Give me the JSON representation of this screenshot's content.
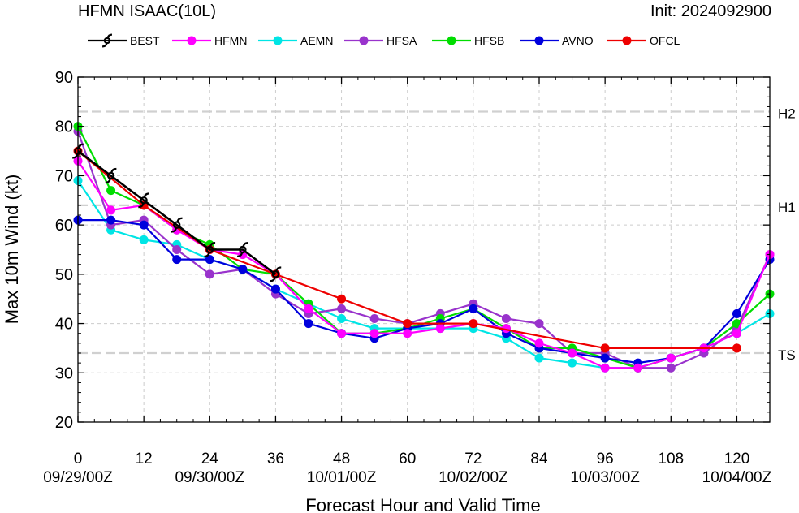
{
  "chart_data": {
    "type": "line",
    "title": "HFMN ISAAC(10L)",
    "subtitle": "Init: 2024092900",
    "xlabel": "Forecast Hour and Valid Time",
    "ylabel": "Max 10m Wind (kt)",
    "xlim": [
      0,
      126
    ],
    "ylim": [
      20,
      90
    ],
    "x_ticks": [
      0,
      12,
      24,
      36,
      48,
      60,
      72,
      84,
      96,
      108,
      120
    ],
    "x_tick_labels": [
      "0",
      "12",
      "24",
      "36",
      "48",
      "60",
      "72",
      "84",
      "96",
      "108",
      "120"
    ],
    "date_labels": [
      {
        "x": 0,
        "label": "09/29/00Z"
      },
      {
        "x": 24,
        "label": "09/30/00Z"
      },
      {
        "x": 48,
        "label": "10/01/00Z"
      },
      {
        "x": 72,
        "label": "10/02/00Z"
      },
      {
        "x": 96,
        "label": "10/03/00Z"
      },
      {
        "x": 120,
        "label": "10/04/00Z"
      }
    ],
    "y_ticks": [
      20,
      30,
      40,
      50,
      60,
      70,
      80,
      90
    ],
    "y_tick_labels": [
      "20",
      "30",
      "40",
      "50",
      "60",
      "70",
      "80",
      "90"
    ],
    "thresholds": [
      {
        "label": "TS",
        "value": 34
      },
      {
        "label": "H1",
        "value": 64
      },
      {
        "label": "H2",
        "value": 83
      }
    ],
    "grid": true,
    "legend_position": "top",
    "series": [
      {
        "name": "BEST",
        "color": "#000000",
        "marker": "hurricane-symbol",
        "x": [
          0,
          6,
          12,
          18,
          24,
          30,
          36
        ],
        "values": [
          75,
          70,
          65,
          60,
          55,
          55,
          50
        ]
      },
      {
        "name": "HFMN",
        "color": "#ff00ff",
        "marker": "dot",
        "x": [
          0,
          6,
          12,
          18,
          24,
          30,
          36,
          42,
          48,
          54,
          60,
          66,
          72,
          78,
          84,
          90,
          96,
          102,
          108,
          114,
          120,
          126
        ],
        "values": [
          73,
          63,
          64,
          59,
          55,
          54,
          50,
          43,
          38,
          38,
          38,
          39,
          40,
          39,
          36,
          34,
          31,
          31,
          33,
          35,
          38,
          54
        ]
      },
      {
        "name": "AEMN",
        "color": "#00e5e5",
        "marker": "dot",
        "x": [
          0,
          6,
          12,
          18,
          24,
          30,
          36,
          42,
          48,
          54,
          60,
          66,
          72,
          78,
          84,
          90,
          96,
          102,
          108,
          114,
          120,
          126
        ],
        "values": [
          69,
          59,
          57,
          56,
          53,
          51,
          47,
          44,
          41,
          39,
          39,
          39,
          39,
          37,
          33,
          32,
          31,
          31,
          33,
          35,
          38,
          42
        ]
      },
      {
        "name": "HFSA",
        "color": "#9933cc",
        "marker": "dot",
        "x": [
          0,
          6,
          12,
          18,
          24,
          30,
          36,
          42,
          48,
          54,
          60,
          66,
          72,
          78,
          84,
          90,
          96,
          102,
          108,
          114,
          120,
          126
        ],
        "values": [
          79,
          60,
          61,
          55,
          50,
          51,
          46,
          42,
          43,
          41,
          40,
          42,
          44,
          41,
          40,
          34,
          34,
          31,
          31,
          34,
          39,
          54
        ]
      },
      {
        "name": "HFSB",
        "color": "#00dd00",
        "marker": "dot",
        "x": [
          0,
          6,
          12,
          18,
          24,
          30,
          36,
          42,
          48,
          54,
          60,
          66,
          72,
          78,
          84,
          90,
          96,
          102,
          108,
          114,
          120,
          126
        ],
        "values": [
          80,
          67,
          64,
          59,
          56,
          51,
          50,
          44,
          38,
          38,
          39,
          41,
          43,
          39,
          35,
          35,
          33,
          31,
          33,
          35,
          40,
          46
        ]
      },
      {
        "name": "AVNO",
        "color": "#0000dd",
        "marker": "dot",
        "x": [
          0,
          6,
          12,
          18,
          24,
          30,
          36,
          42,
          48,
          54,
          60,
          66,
          72,
          78,
          84,
          90,
          96,
          102,
          108,
          114,
          120,
          126
        ],
        "values": [
          61,
          61,
          60,
          53,
          53,
          51,
          47,
          40,
          38,
          37,
          39,
          40,
          43,
          38,
          35,
          34,
          33,
          32,
          33,
          35,
          42,
          53
        ]
      },
      {
        "name": "OFCL",
        "color": "#ee0000",
        "marker": "dot",
        "x": [
          0,
          12,
          24,
          36,
          48,
          60,
          72,
          96,
          120
        ],
        "values": [
          75,
          64,
          55,
          50,
          45,
          40,
          40,
          35,
          35
        ]
      }
    ]
  }
}
